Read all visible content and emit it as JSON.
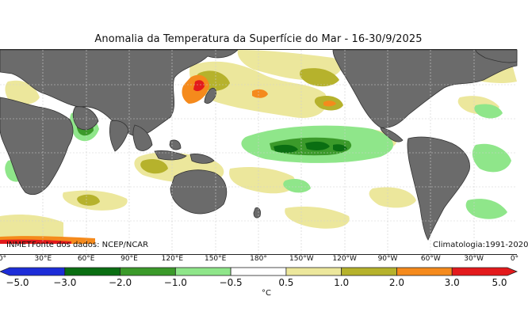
{
  "title": "Anomalia da Temperatura da Superfície do Mar - 16-30/9/2025",
  "map": {
    "source": "Fonte dos dados: NCEP/NCAR",
    "agency": "INMET",
    "climatology": "Climatologia:1991-2020",
    "longitude_labels": [
      "0°",
      "30°E",
      "60°E",
      "90°E",
      "120°E",
      "150°E",
      "180°",
      "150°W",
      "120°W",
      "90°W",
      "60°W",
      "30°W",
      "0°"
    ]
  },
  "legend": {
    "unit": "°C",
    "bounds": [
      "−5.0",
      "−3.0",
      "−2.0",
      "−1.0",
      "−0.5",
      "0.5",
      "1.0",
      "2.0",
      "3.0",
      "5.0"
    ],
    "colors": [
      "#1d2dd8",
      "#0a6e12",
      "#3b9a2a",
      "#8fe68a",
      "#ffffff",
      "#ece79c",
      "#b6b22c",
      "#f58a1c",
      "#e31a1c"
    ],
    "land_color": "#6b6b6b"
  }
}
